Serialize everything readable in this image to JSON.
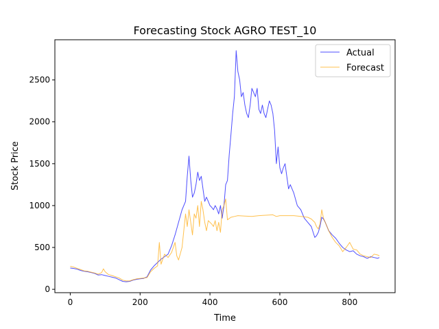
{
  "chart_data": {
    "type": "line",
    "title": "Forecasting Stock AGRO TEST_10",
    "xlabel": "Time",
    "ylabel": "Stock Price",
    "xlim": [
      -44,
      930
    ],
    "ylim": [
      -40,
      2980
    ],
    "xticks": [
      0,
      200,
      400,
      600,
      800
    ],
    "yticks": [
      0,
      500,
      1000,
      1500,
      2000,
      2500
    ],
    "grid": false,
    "legend_position": "top-right",
    "series": [
      {
        "name": "Actual",
        "color": "#0000ff",
        "x": [
          0,
          10,
          20,
          30,
          40,
          50,
          60,
          70,
          80,
          90,
          100,
          110,
          120,
          130,
          140,
          150,
          160,
          170,
          180,
          190,
          200,
          210,
          220,
          230,
          240,
          250,
          260,
          270,
          280,
          290,
          300,
          310,
          320,
          330,
          335,
          340,
          345,
          350,
          355,
          360,
          365,
          370,
          375,
          380,
          385,
          390,
          395,
          400,
          405,
          410,
          415,
          420,
          425,
          430,
          435,
          440,
          445,
          450,
          455,
          460,
          465,
          470,
          475,
          480,
          485,
          490,
          495,
          500,
          505,
          510,
          515,
          520,
          525,
          530,
          535,
          540,
          545,
          550,
          555,
          560,
          565,
          570,
          575,
          580,
          585,
          590,
          595,
          600,
          605,
          610,
          615,
          620,
          625,
          630,
          640,
          650,
          660,
          670,
          680,
          690,
          700,
          705,
          710,
          715,
          720,
          725,
          730,
          740,
          750,
          760,
          770,
          780,
          790,
          800,
          810,
          820,
          830,
          840,
          850,
          860,
          870,
          880,
          885
        ],
        "y": [
          255,
          250,
          240,
          225,
          215,
          210,
          200,
          190,
          170,
          175,
          165,
          155,
          145,
          135,
          115,
          95,
          90,
          95,
          110,
          120,
          125,
          130,
          150,
          230,
          280,
          320,
          360,
          390,
          420,
          520,
          650,
          800,
          950,
          1050,
          1350,
          1590,
          1300,
          1100,
          1150,
          1250,
          1400,
          1300,
          1350,
          1200,
          1050,
          1100,
          1050,
          1000,
          980,
          950,
          1000,
          960,
          900,
          1000,
          850,
          1000,
          1250,
          1300,
          1600,
          1850,
          2100,
          2300,
          2850,
          2600,
          2500,
          2300,
          2350,
          2200,
          2100,
          2050,
          2200,
          2400,
          2350,
          2300,
          2400,
          2150,
          2100,
          2200,
          2100,
          2050,
          2150,
          2250,
          2200,
          2100,
          1900,
          1500,
          1700,
          1450,
          1380,
          1450,
          1500,
          1350,
          1200,
          1250,
          1150,
          1000,
          950,
          850,
          800,
          750,
          620,
          640,
          680,
          750,
          860,
          840,
          800,
          700,
          650,
          610,
          550,
          500,
          470,
          450,
          460,
          420,
          400,
          390,
          370,
          390,
          380,
          370,
          380
        ]
      },
      {
        "name": "Forecast",
        "color": "#ffa500",
        "x": [
          0,
          10,
          20,
          30,
          40,
          50,
          60,
          70,
          80,
          90,
          95,
          100,
          110,
          120,
          130,
          140,
          150,
          160,
          170,
          180,
          190,
          200,
          210,
          220,
          230,
          240,
          250,
          255,
          260,
          270,
          280,
          290,
          300,
          305,
          310,
          320,
          330,
          335,
          340,
          345,
          350,
          355,
          360,
          365,
          370,
          375,
          380,
          385,
          390,
          395,
          400,
          405,
          410,
          415,
          420,
          425,
          430,
          435,
          440,
          445,
          450,
          460,
          470,
          480,
          500,
          520,
          540,
          560,
          580,
          590,
          600,
          620,
          640,
          660,
          680,
          690,
          700,
          705,
          710,
          715,
          720,
          725,
          730,
          740,
          750,
          760,
          770,
          780,
          790,
          800,
          810,
          820,
          830,
          840,
          850,
          860,
          870,
          880,
          885
        ],
        "y": [
          275,
          265,
          250,
          235,
          220,
          215,
          205,
          195,
          180,
          200,
          245,
          210,
          175,
          165,
          150,
          135,
          110,
          100,
          100,
          115,
          125,
          130,
          135,
          140,
          210,
          250,
          280,
          560,
          300,
          420,
          380,
          440,
          560,
          400,
          350,
          500,
          900,
          750,
          950,
          800,
          650,
          900,
          850,
          1000,
          750,
          1050,
          950,
          800,
          700,
          820,
          800,
          780,
          750,
          820,
          700,
          800,
          680,
          950,
          1000,
          1080,
          830,
          860,
          870,
          880,
          875,
          870,
          880,
          885,
          890,
          870,
          880,
          880,
          880,
          870,
          860,
          840,
          800,
          750,
          720,
          780,
          950,
          850,
          800,
          700,
          620,
          560,
          520,
          450,
          500,
          560,
          480,
          470,
          420,
          400,
          390,
          380,
          420,
          410,
          400
        ]
      }
    ]
  }
}
